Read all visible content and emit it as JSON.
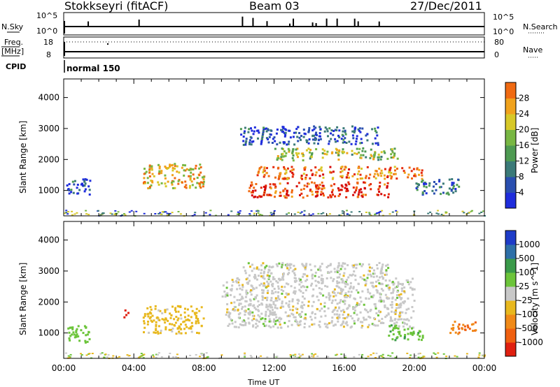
{
  "header": {
    "site": "Stokkseyri (fitACF)",
    "beam": "Beam 03",
    "date": "27/Dec/2011"
  },
  "strips": {
    "nsky_label": "N.Sky",
    "nsky_tick_top": "10^5",
    "nsky_tick_bottom": "10^0",
    "nsearch_label": "N.Search",
    "nsearch_tick_top": "10^5",
    "nsearch_tick_bottom": "10^0",
    "freq_label": "Freq.",
    "freq_unit": "[MHz]",
    "freq_tick_top": "18",
    "freq_tick_bottom": "8",
    "nave_label": "Nave",
    "nave_tick_top": "80",
    "nave_tick_bottom": "0",
    "cpid_label": "CPID",
    "cpid_value": "normal 150"
  },
  "chart_data": [
    {
      "type": "heatmap",
      "panel": "power",
      "ylabel": "Slant Range [km]",
      "yticks": [
        1000,
        2000,
        3000,
        4000
      ],
      "ylim": [
        180,
        4600
      ],
      "colorbar": {
        "label": "Power [dB]",
        "ticks": [
          "4",
          "8",
          "12",
          "16",
          "20",
          "24",
          "28"
        ],
        "colors": [
          "#1f2ddc",
          "#2a4fb0",
          "#3b7a78",
          "#4e9a52",
          "#78b743",
          "#d7c828",
          "#f0a21c",
          "#f06a12",
          "#e52a0c",
          "#d40606"
        ]
      },
      "regions": [
        {
          "t_start": 0.0,
          "t_end": 1.5,
          "r_min": 900,
          "r_max": 1400,
          "value_db": 6
        },
        {
          "t_start": 4.5,
          "t_end": 8.0,
          "r_min": 1100,
          "r_max": 1900,
          "value_db": 20
        },
        {
          "t_start": 10.5,
          "t_end": 18.5,
          "r_min": 800,
          "r_max": 1300,
          "value_db": 28
        },
        {
          "t_start": 11.0,
          "t_end": 20.5,
          "r_min": 1400,
          "r_max": 1800,
          "value_db": 24
        },
        {
          "t_start": 12.0,
          "t_end": 19.0,
          "r_min": 2000,
          "r_max": 2400,
          "value_db": 16
        },
        {
          "t_start": 10.0,
          "t_end": 18.0,
          "r_min": 2500,
          "r_max": 3100,
          "value_db": 6
        },
        {
          "t_start": 20.0,
          "t_end": 22.5,
          "r_min": 900,
          "r_max": 1400,
          "value_db": 8
        }
      ]
    },
    {
      "type": "heatmap",
      "panel": "velocity",
      "ylabel": "Slant Range [km]",
      "yticks": [
        1000,
        2000,
        3000,
        4000
      ],
      "ylim": [
        180,
        4600
      ],
      "xlabel": "Time UT",
      "xticks": [
        "00:00",
        "04:00",
        "08:00",
        "12:00",
        "16:00",
        "20:00",
        "00:00"
      ],
      "xlim_hours": [
        0,
        24
      ],
      "colorbar": {
        "label": "Velocity [m s^-1]",
        "ticks": [
          "1000",
          "500",
          "100",
          "25",
          "-25",
          "-100",
          "-500",
          "-1000"
        ],
        "colors": [
          "#1e3cc8",
          "#2e6fa8",
          "#3a9a4a",
          "#6cc43a",
          "#c8c8c8",
          "#e8b81e",
          "#f08a18",
          "#f06010",
          "#e02010"
        ]
      },
      "regions": [
        {
          "t_start": 0.2,
          "t_end": 1.5,
          "r_min": 700,
          "r_max": 1300,
          "value_ms": 60
        },
        {
          "t_start": 4.5,
          "t_end": 8.0,
          "r_min": 1000,
          "r_max": 1900,
          "value_ms": -50
        },
        {
          "t_start": 9.0,
          "t_end": 20.0,
          "r_min": 1200,
          "r_max": 2800,
          "value_ms": 0
        },
        {
          "t_start": 10.0,
          "t_end": 18.5,
          "r_min": 2800,
          "r_max": 3300,
          "value_ms": 0
        },
        {
          "t_start": 18.5,
          "t_end": 20.5,
          "r_min": 800,
          "r_max": 1300,
          "value_ms": 80
        },
        {
          "t_start": 22.0,
          "t_end": 23.5,
          "r_min": 1000,
          "r_max": 1400,
          "value_ms": -300
        },
        {
          "t_start": 3.4,
          "t_end": 3.7,
          "r_min": 1500,
          "r_max": 1800,
          "value_ms": -1000
        }
      ]
    }
  ]
}
